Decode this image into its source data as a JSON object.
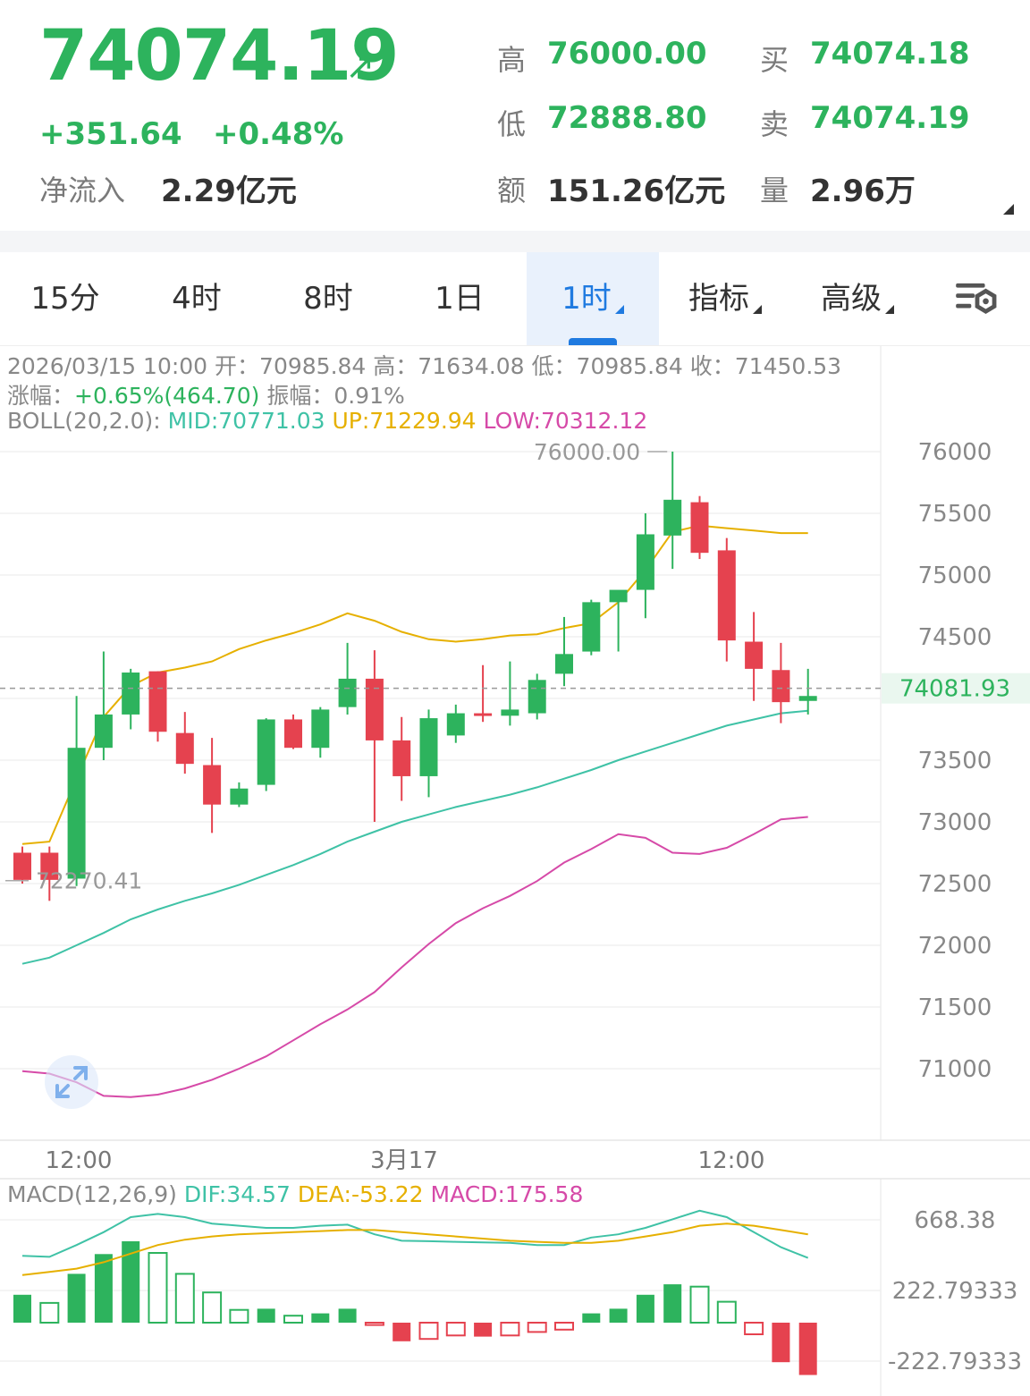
{
  "header": {
    "price": "74074.19",
    "change": "+351.64",
    "change_pct": "+0.48%",
    "net_inflow_label": "净流入",
    "net_inflow_value": "2.29亿元",
    "high_label": "高",
    "high_value": "76000.00",
    "low_label": "低",
    "low_value": "72888.80",
    "amount_label": "额",
    "amount_value": "151.26亿元",
    "buy_label": "买",
    "buy_value": "74074.18",
    "sell_label": "卖",
    "sell_value": "74074.19",
    "volume_label": "量",
    "volume_value": "2.96万"
  },
  "tabs": [
    {
      "label": "15分",
      "active": false
    },
    {
      "label": "4时",
      "active": false
    },
    {
      "label": "8时",
      "active": false
    },
    {
      "label": "1日",
      "active": false
    },
    {
      "label": "1时",
      "active": true
    },
    {
      "label": "指标",
      "active": false
    },
    {
      "label": "高级",
      "active": false
    }
  ],
  "info": {
    "line1_prefix": "2026/03/15 10:00 开：",
    "open": "70985.84",
    "high_label": " 高：",
    "high": "71634.08",
    "low_label": " 低：",
    "low": "70985.84",
    "close_label": " 收：",
    "close": "71450.53",
    "chg_label": "涨幅：",
    "chg": "+0.65%(464.70)",
    "amp_label": " 振幅：",
    "amp": "0.91%",
    "boll_label": "BOLL(20,2.0): ",
    "boll_mid": "MID:70771.03",
    "boll_up": "UP:71229.94",
    "boll_low": "LOW:70312.12",
    "macd_label": "MACD(12,26,9) ",
    "macd_dif": "DIF:34.57",
    "macd_dea": "DEA:-53.22",
    "macd_val": "MACD:175.58"
  },
  "colors": {
    "up": "#2db35d",
    "down": "#e5424f",
    "mid": "#3fc2a6",
    "upper": "#e6b000",
    "lower": "#d64aa8",
    "accent": "#1f7ae0"
  },
  "icons": {
    "settings": "chart-settings-icon",
    "expand": "expand-icon"
  },
  "chart_data": [
    {
      "type": "candlestick",
      "x_tick_labels": [
        "12:00",
        "3月17",
        "12:00"
      ],
      "y_ticks": [
        71000,
        71500,
        72000,
        72500,
        73000,
        73500,
        74000,
        74500,
        75000,
        75500,
        76000
      ],
      "y_tick_labels": [
        "71000",
        "71500",
        "72000",
        "72500",
        "73000",
        "73500",
        "",
        "74500",
        "75000",
        "75500",
        "76000"
      ],
      "ylim": [
        70450,
        76300
      ],
      "last_price_label": "74081.93",
      "last_price": 74082,
      "max_label": "76000.00",
      "max_value": 76000,
      "min_label": "72270.41",
      "min_value": 72270,
      "candles": [
        {
          "o": 72750,
          "h": 72800,
          "l": 72500,
          "c": 72530
        },
        {
          "o": 72750,
          "h": 72800,
          "l": 72360,
          "c": 72530
        },
        {
          "o": 72540,
          "h": 74020,
          "l": 72480,
          "c": 73600
        },
        {
          "o": 73600,
          "h": 74380,
          "l": 73500,
          "c": 73870
        },
        {
          "o": 73870,
          "h": 74240,
          "l": 73750,
          "c": 74210
        },
        {
          "o": 74220,
          "h": 74220,
          "l": 73650,
          "c": 73730
        },
        {
          "o": 73720,
          "h": 73890,
          "l": 73390,
          "c": 73470
        },
        {
          "o": 73460,
          "h": 73680,
          "l": 72910,
          "c": 73140
        },
        {
          "o": 73140,
          "h": 73320,
          "l": 73120,
          "c": 73270
        },
        {
          "o": 73300,
          "h": 73840,
          "l": 73250,
          "c": 73830
        },
        {
          "o": 73830,
          "h": 73870,
          "l": 73590,
          "c": 73600
        },
        {
          "o": 73600,
          "h": 73930,
          "l": 73520,
          "c": 73910
        },
        {
          "o": 73930,
          "h": 74450,
          "l": 73870,
          "c": 74160
        },
        {
          "o": 74160,
          "h": 74390,
          "l": 73000,
          "c": 73660
        },
        {
          "o": 73660,
          "h": 73850,
          "l": 73170,
          "c": 73370
        },
        {
          "o": 73370,
          "h": 73910,
          "l": 73200,
          "c": 73840
        },
        {
          "o": 73700,
          "h": 73950,
          "l": 73640,
          "c": 73880
        },
        {
          "o": 73880,
          "h": 74270,
          "l": 73810,
          "c": 73870
        },
        {
          "o": 73860,
          "h": 74300,
          "l": 73780,
          "c": 73910
        },
        {
          "o": 73880,
          "h": 74200,
          "l": 73830,
          "c": 74150
        },
        {
          "o": 74200,
          "h": 74660,
          "l": 74100,
          "c": 74360
        },
        {
          "o": 74380,
          "h": 74800,
          "l": 74350,
          "c": 74780
        },
        {
          "o": 74780,
          "h": 74860,
          "l": 74380,
          "c": 74880
        },
        {
          "o": 74880,
          "h": 75500,
          "l": 74650,
          "c": 75330
        },
        {
          "o": 75320,
          "h": 76000,
          "l": 75050,
          "c": 75610
        },
        {
          "o": 75590,
          "h": 75640,
          "l": 75130,
          "c": 75180
        },
        {
          "o": 75200,
          "h": 75300,
          "l": 74300,
          "c": 74470
        },
        {
          "o": 74460,
          "h": 74700,
          "l": 73980,
          "c": 74240
        },
        {
          "o": 74230,
          "h": 74450,
          "l": 73800,
          "c": 73970
        },
        {
          "o": 73980,
          "h": 74240,
          "l": 73870,
          "c": 74020
        }
      ],
      "boll_up": [
        72820,
        72840,
        73350,
        73850,
        74100,
        74210,
        74250,
        74300,
        74400,
        74470,
        74530,
        74600,
        74690,
        74630,
        74540,
        74480,
        74460,
        74480,
        74510,
        74520,
        74570,
        74610,
        74780,
        75040,
        75350,
        75400,
        75380,
        75360,
        75340,
        75340
      ],
      "boll_mid": [
        71850,
        71900,
        72000,
        72100,
        72210,
        72290,
        72360,
        72420,
        72490,
        72570,
        72650,
        72740,
        72840,
        72920,
        73000,
        73060,
        73120,
        73170,
        73220,
        73280,
        73350,
        73420,
        73500,
        73570,
        73640,
        73710,
        73780,
        73830,
        73880,
        73900
      ],
      "boll_low": [
        70980,
        70960,
        70890,
        70780,
        70770,
        70790,
        70840,
        70910,
        71000,
        71100,
        71230,
        71360,
        71480,
        71620,
        71820,
        72010,
        72180,
        72300,
        72400,
        72520,
        72670,
        72780,
        72900,
        72870,
        72750,
        72740,
        72790,
        72900,
        73020,
        73040
      ]
    },
    {
      "type": "macd",
      "y_tick_labels": [
        "668.38",
        "222.79333",
        "-222.79333"
      ],
      "ylim": [
        -320,
        760
      ],
      "hist": [
        120,
        85,
        210,
        295,
        350,
        300,
        210,
        130,
        55,
        60,
        30,
        40,
        60,
        -10,
        -80,
        -70,
        -55,
        -60,
        -55,
        -40,
        -30,
        40,
        60,
        120,
        165,
        155,
        90,
        -50,
        -170,
        -225
      ],
      "dif": [
        420,
        415,
        470,
        530,
        600,
        615,
        600,
        570,
        560,
        550,
        550,
        560,
        565,
        520,
        490,
        488,
        485,
        482,
        480,
        470,
        470,
        505,
        520,
        550,
        590,
        630,
        600,
        530,
        460,
        410
      ],
      "dea": [
        330,
        345,
        360,
        390,
        430,
        470,
        495,
        510,
        520,
        525,
        530,
        535,
        540,
        540,
        530,
        520,
        510,
        500,
        490,
        485,
        480,
        480,
        490,
        510,
        530,
        560,
        570,
        560,
        540,
        520
      ]
    }
  ]
}
